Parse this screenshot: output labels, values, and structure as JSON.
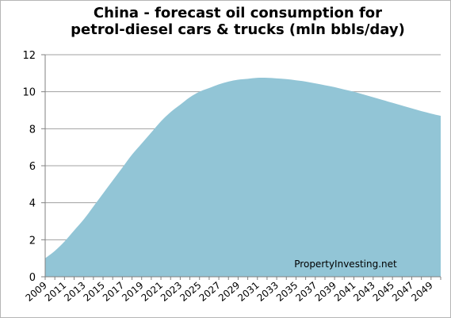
{
  "chart_data": {
    "type": "area",
    "title_line1": "China - forecast oil consumption for",
    "title_line2": "petrol-diesel cars & trucks (mln bbls/day)",
    "watermark": "PropertyInvesting.net",
    "xlabel": "",
    "ylabel": "",
    "ylim": [
      0,
      12
    ],
    "yticks": [
      0,
      2,
      4,
      6,
      8,
      10,
      12
    ],
    "grid": "horizontal",
    "legend": "none",
    "fill_color": "#92c5d6",
    "grid_color": "#a0a0a0",
    "x_tick_labels": [
      "2009",
      "2011",
      "2013",
      "2015",
      "2017",
      "2019",
      "2021",
      "2023",
      "2025",
      "2027",
      "2029",
      "2031",
      "2033",
      "2035",
      "2037",
      "2039",
      "2041",
      "2043",
      "2045",
      "2047",
      "2049"
    ],
    "x": [
      2009,
      2010,
      2011,
      2012,
      2013,
      2014,
      2015,
      2016,
      2017,
      2018,
      2019,
      2020,
      2021,
      2022,
      2023,
      2024,
      2025,
      2026,
      2027,
      2028,
      2029,
      2030,
      2031,
      2032,
      2033,
      2034,
      2035,
      2036,
      2037,
      2038,
      2039,
      2040,
      2041,
      2042,
      2043,
      2044,
      2045,
      2046,
      2047,
      2048,
      2049,
      2050
    ],
    "values": [
      1.0,
      1.4,
      1.9,
      2.5,
      3.1,
      3.8,
      4.5,
      5.2,
      5.9,
      6.6,
      7.2,
      7.8,
      8.4,
      8.9,
      9.3,
      9.7,
      10.0,
      10.2,
      10.4,
      10.55,
      10.65,
      10.7,
      10.75,
      10.75,
      10.72,
      10.68,
      10.62,
      10.55,
      10.45,
      10.35,
      10.25,
      10.12,
      10.0,
      9.85,
      9.7,
      9.55,
      9.4,
      9.25,
      9.1,
      8.95,
      8.82,
      8.7
    ]
  }
}
